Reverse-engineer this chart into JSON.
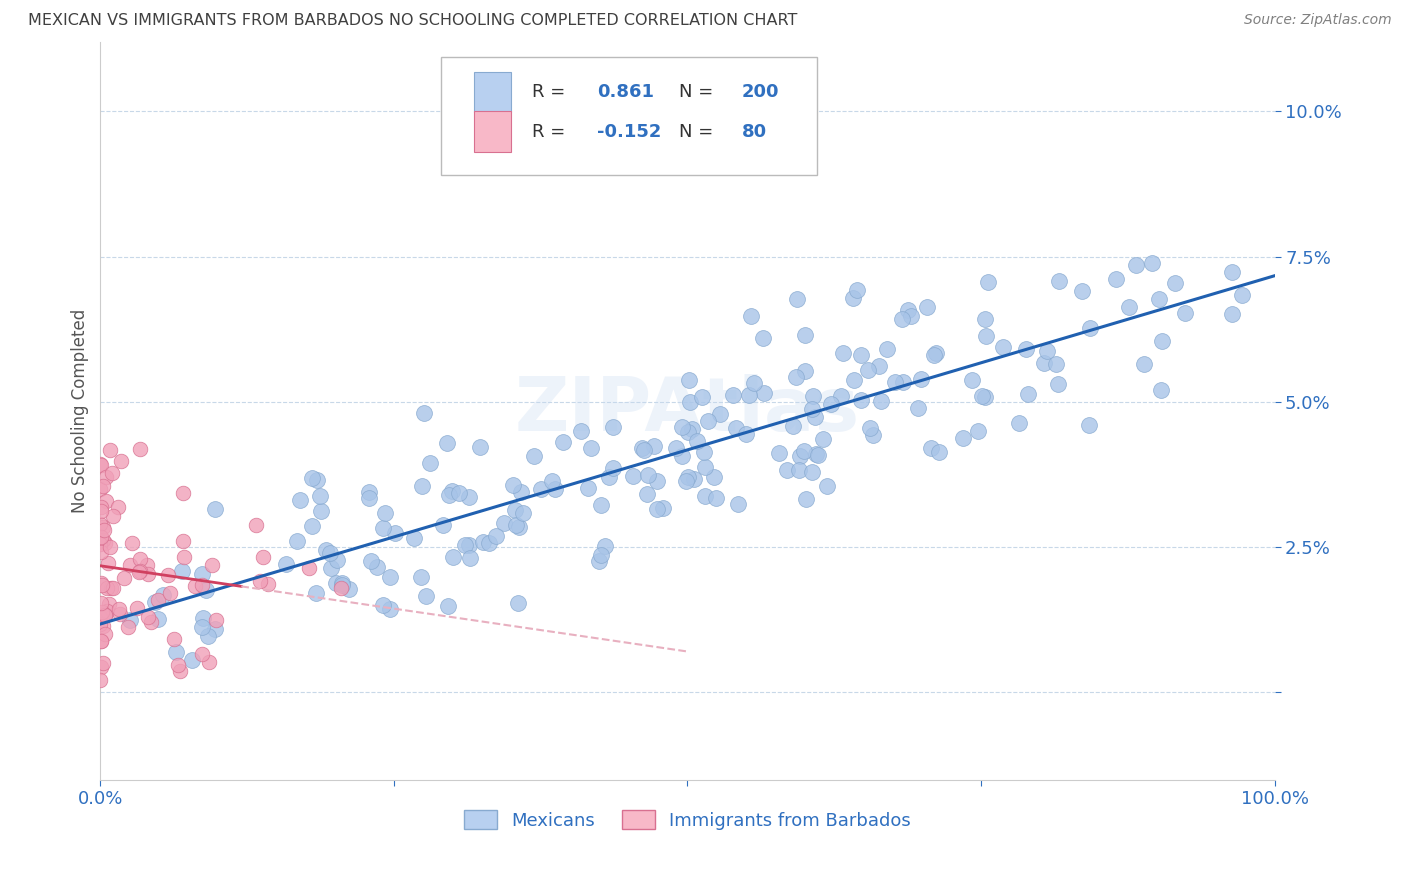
{
  "title": "MEXICAN VS IMMIGRANTS FROM BARBADOS NO SCHOOLING COMPLETED CORRELATION CHART",
  "source": "Source: ZipAtlas.com",
  "ylabel": "No Schooling Completed",
  "watermark": "ZIPAtlas",
  "blue_R": 0.861,
  "blue_N": 200,
  "pink_R": -0.152,
  "pink_N": 80,
  "blue_color": "#a8c4e8",
  "blue_edge": "#88aad0",
  "pink_color": "#f0a0b8",
  "pink_edge": "#d87090",
  "blue_line_color": "#2060b0",
  "pink_line_color": "#d04060",
  "pink_line_dash_color": "#e8b0c0",
  "legend_blue_face": "#b8d0f0",
  "legend_pink_face": "#f8b8c8",
  "title_color": "#404040",
  "source_color": "#808080",
  "tick_color": "#3070c0",
  "grid_color": "#c8d8e8",
  "background_color": "#ffffff",
  "xlim": [
    0.0,
    1.0
  ],
  "ylim": [
    -0.015,
    0.112
  ],
  "xticks": [
    0.0,
    0.25,
    0.5,
    0.75,
    1.0
  ],
  "xtick_labels": [
    "0.0%",
    "",
    "",
    "",
    "100.0%"
  ],
  "ytick_positions": [
    0.0,
    0.025,
    0.05,
    0.075,
    0.1
  ],
  "ytick_labels": [
    "",
    "2.5%",
    "5.0%",
    "7.5%",
    "10.0%"
  ],
  "figsize": [
    14.06,
    8.92
  ],
  "dpi": 100,
  "seed": 42
}
